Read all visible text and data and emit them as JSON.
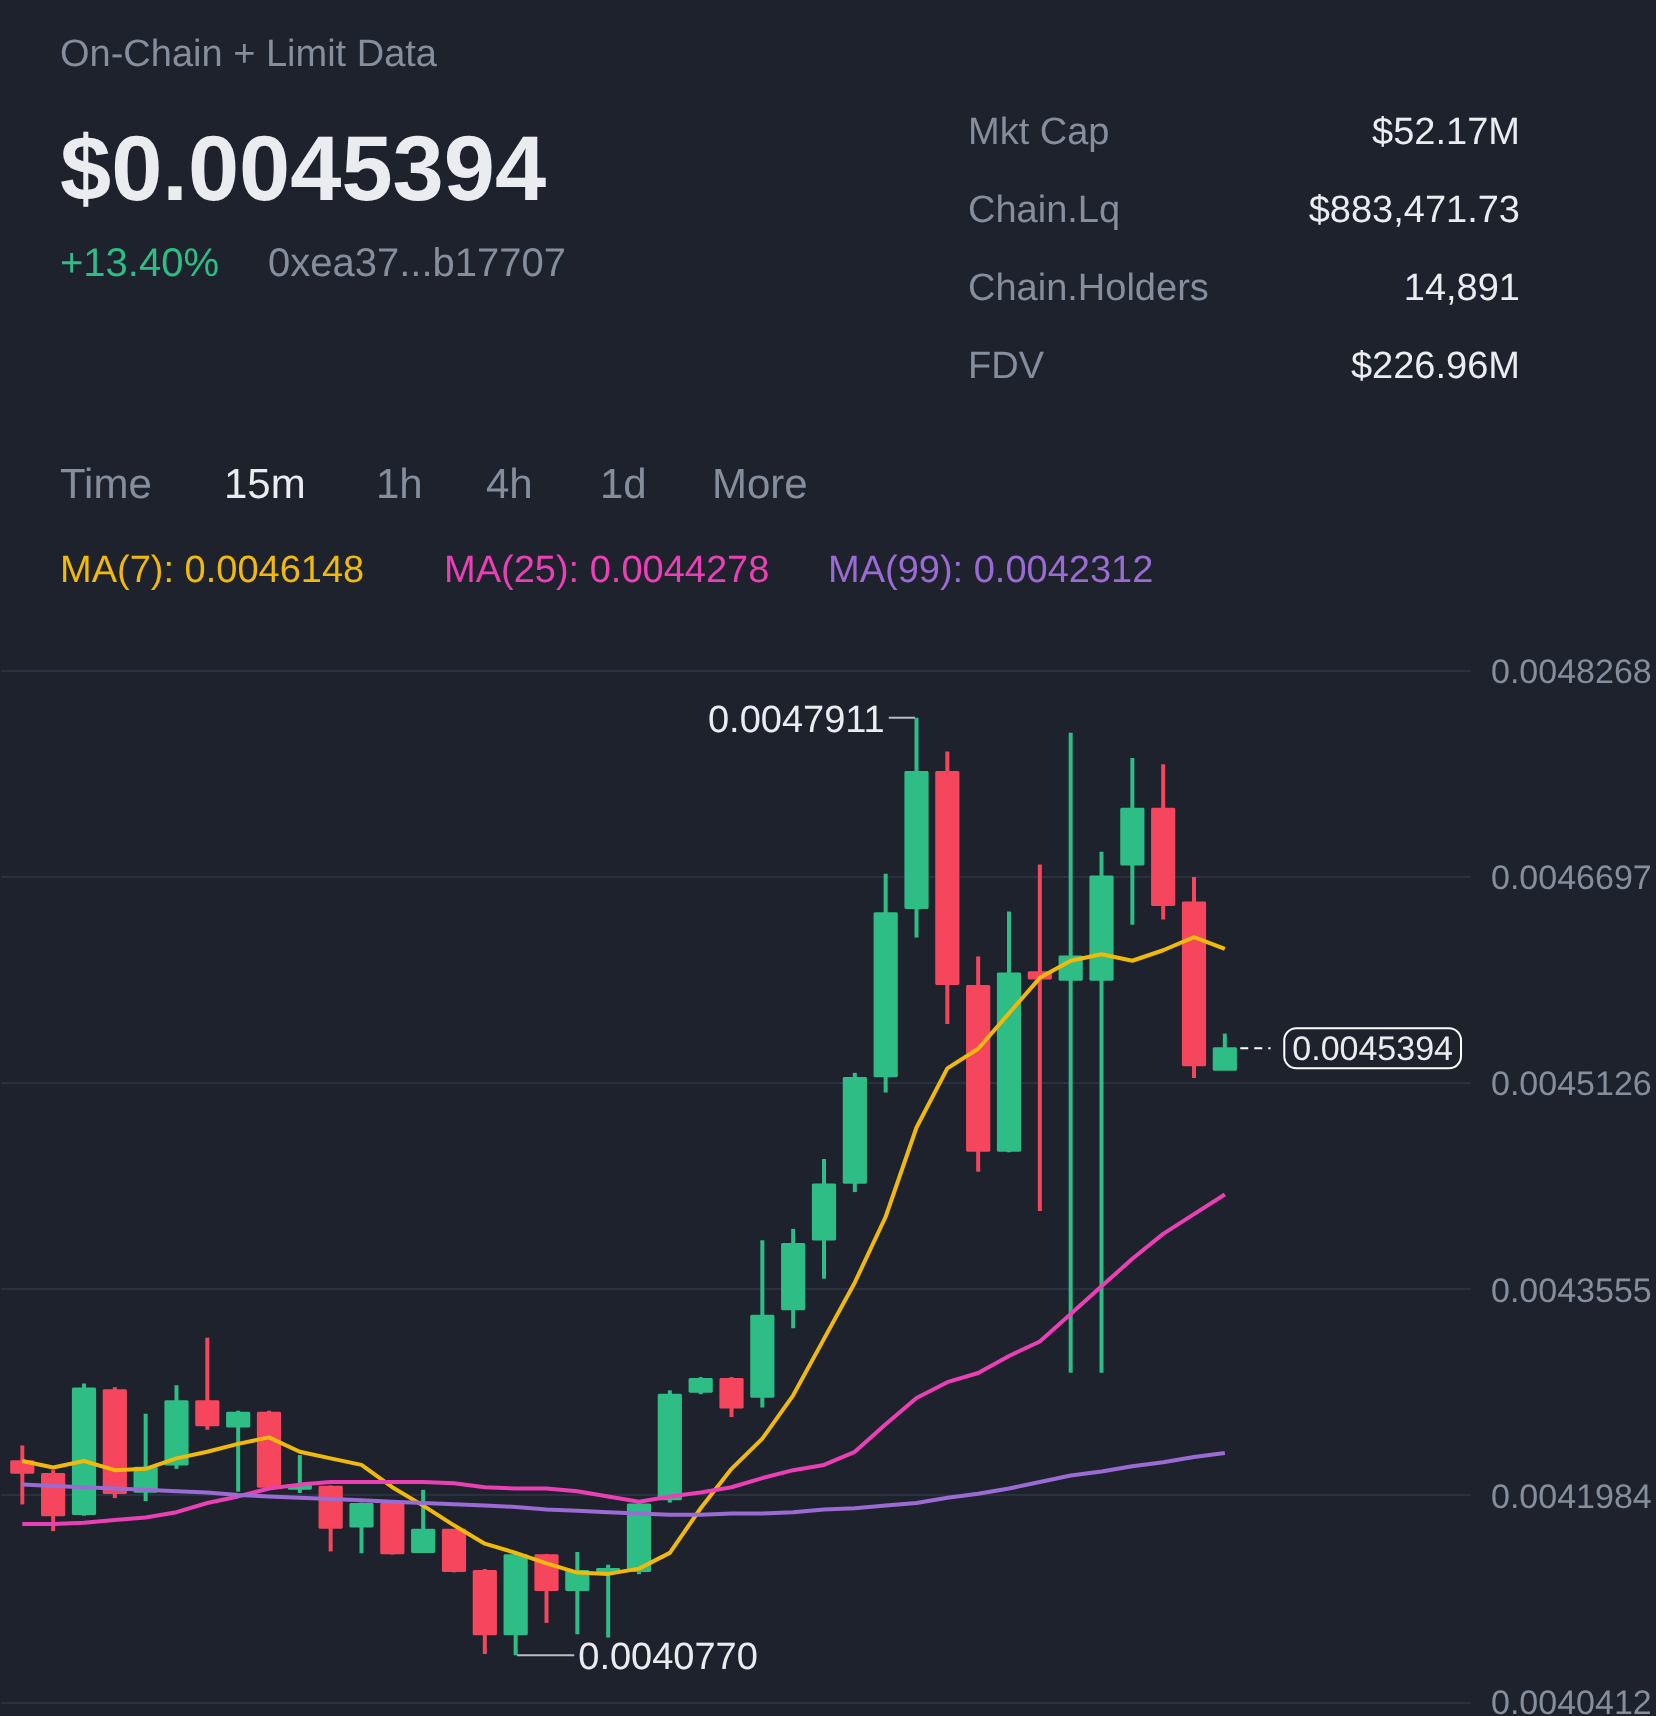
{
  "chart_data": {
    "type": "candlestick",
    "title": "On-Chain + Limit Data",
    "annotations": [
      "$0.0045394",
      "+13.40%",
      "0xea37...b17707",
      "Mkt Cap",
      "$52.17M",
      "Chain.Lq",
      "$883,471.73",
      "Chain.Holders",
      "14,891",
      "FDV",
      "$226.96M",
      "Time",
      "15m",
      "1h",
      "4h",
      "1d",
      "More",
      "0.0047911",
      "0.0040770"
    ],
    "categories": [
      null,
      null,
      null,
      null,
      null,
      null,
      null,
      null,
      null,
      null,
      null,
      null,
      null,
      null,
      null,
      null,
      null,
      null,
      null,
      null,
      null,
      null,
      null,
      null,
      null,
      null,
      null,
      null,
      null,
      null,
      null,
      null,
      null,
      null,
      null,
      null,
      null,
      null,
      null,
      null
    ],
    "colors": [
      "#f6465d",
      "#f6465d",
      "#2ebd85",
      "#f6465d",
      "#2ebd85",
      "#2ebd85",
      "#f6465d",
      "#2ebd85",
      "#f6465d",
      "#2ebd85",
      "#f6465d",
      "#2ebd85",
      "#f6465d",
      "#2ebd85",
      "#f6465d",
      "#f6465d",
      "#2ebd85",
      "#f6465d",
      "#2ebd85",
      "#2ebd85",
      "#2ebd85",
      "#2ebd85",
      "#2ebd85",
      "#f6465d",
      "#2ebd85",
      "#2ebd85",
      "#2ebd85",
      "#2ebd85",
      "#2ebd85",
      "#2ebd85",
      "#f6465d",
      "#f6465d",
      "#2ebd85",
      "#f6465d",
      "#2ebd85",
      "#2ebd85",
      "#2ebd85",
      "#f6465d",
      "#f6465d",
      "#2ebd85"
    ],
    "ohlc": [
      [
        0.0042248,
        0.0042368,
        0.0041919,
        0.0042161
      ],
      [
        0.0042151,
        0.004218,
        0.0041716,
        0.0041836
      ],
      [
        0.0041847,
        0.0042841,
        0.0041832,
        0.0042802
      ],
      [
        0.0042788,
        0.0042812,
        0.0041967,
        0.0042006
      ],
      [
        0.0042016,
        0.004261,
        0.0041944,
        0.0042198
      ],
      [
        0.0042223,
        0.0042827,
        0.004219,
        0.0042705
      ],
      [
        0.0042705,
        0.0043189,
        0.0042488,
        0.0042523
      ],
      [
        0.0042513,
        0.0042633,
        0.0042016,
        0.0042618
      ],
      [
        0.0042618,
        0.0042633,
        0.0042042,
        0.0042054
      ],
      [
        0.0042039,
        0.0042295,
        0.0042006,
        0.0042064
      ],
      [
        0.0042054,
        0.0042064,
        0.0041561,
        0.0041741
      ],
      [
        0.004175,
        0.0041933,
        0.0041547,
        0.0041923
      ],
      [
        0.0041923,
        0.0041948,
        0.0041538,
        0.0041547
      ],
      [
        0.0041557,
        0.004203,
        0.004155,
        0.0041726
      ],
      [
        0.0041726,
        0.004173,
        0.0041402,
        0.0041412
      ],
      [
        0.0041412,
        0.0041427,
        0.004078,
        0.004093
      ],
      [
        0.004093,
        0.0041542,
        0.004077,
        0.0041532
      ],
      [
        0.0041532,
        0.0041542,
        0.0041017,
        0.0041267
      ],
      [
        0.0041267,
        0.0041557,
        0.004093,
        0.0041412
      ],
      [
        0.0041412,
        0.004146,
        0.0040905,
        0.0041427
      ],
      [
        0.0041412,
        0.0041944,
        0.0041388,
        0.0041919
      ],
      [
        0.0041958,
        0.0042788,
        0.0041933,
        0.0042754
      ],
      [
        0.0042778,
        0.0042889,
        0.0042759,
        0.0042875
      ],
      [
        0.0042875,
        0.0042889,
        0.0042585,
        0.0042657
      ],
      [
        0.004274,
        0.0043932,
        0.0042657,
        0.0043357
      ],
      [
        0.0043406,
        0.0044018,
        0.0043261,
        0.0043903
      ],
      [
        0.0043936,
        0.004455,
        0.0043638,
        0.0044356
      ],
      [
        0.004437,
        0.0045206,
        0.0044298,
        0.0045167
      ],
      [
        0.0045181,
        0.0046722,
        0.0045057,
        0.0046422
      ],
      [
        0.0046461,
        0.0047911,
        0.0046238,
        0.0047498
      ],
      [
        0.0047498,
        0.0047653,
        0.0045578,
        0.0045882
      ],
      [
        0.0045867,
        0.0046093,
        0.0044453,
        0.0044612
      ],
      [
        0.0044612,
        0.0046436,
        0.0044602,
        0.0045963
      ],
      [
        0.0045973,
        0.0046794,
        0.0044153,
        0.0045925
      ],
      [
        0.0045915,
        0.0047797,
        0.0042922,
        0.0046093
      ],
      [
        0.0045915,
        0.004689,
        0.0042922,
        0.0046701
      ],
      [
        0.0046794,
        0.0047605,
        0.0046335,
        0.0047218
      ],
      [
        0.0047218,
        0.0047556,
        0.0046374,
        0.0046484
      ],
      [
        0.0046504,
        0.0046697,
        0.0045167,
        0.0045264
      ],
      [
        0.004523,
        0.0045505,
        0.004523,
        0.0045394
      ]
    ],
    "series": [
      {
        "type": "line",
        "name": "MA(7): 0.0046148",
        "color": "#f0b90b",
        "values": [
          0.004225,
          0.00422,
          0.004225,
          0.004218,
          0.004219,
          0.004227,
          0.004232,
          0.004238,
          0.004243,
          0.004232,
          0.004227,
          0.004222,
          0.004205,
          0.004191,
          0.004176,
          0.004162,
          0.004155,
          0.004147,
          0.00414,
          0.004139,
          0.004143,
          0.004155,
          0.004189,
          0.004219,
          0.004242,
          0.004275,
          0.004318,
          0.004361,
          0.004411,
          0.004479,
          0.004524,
          0.004539,
          0.004566,
          0.004593,
          0.004606,
          0.004611,
          0.004606,
          0.004614,
          0.004624,
          0.004615
        ]
      },
      {
        "type": "line",
        "name": "MA(25): 0.0044278",
        "color": "#eb40b5",
        "values": [
          0.004177,
          0.004177,
          0.004178,
          0.00418,
          0.004182,
          0.004186,
          0.004193,
          0.004198,
          0.004204,
          0.004207,
          0.004209,
          0.004209,
          0.004209,
          0.004209,
          0.004208,
          0.004205,
          0.004204,
          0.004204,
          0.004202,
          0.004198,
          0.004194,
          0.004198,
          0.004201,
          0.004205,
          0.004212,
          0.004218,
          0.004222,
          0.004232,
          0.004253,
          0.004273,
          0.004285,
          0.004292,
          0.004305,
          0.004316,
          0.004337,
          0.004358,
          0.004379,
          0.004398,
          0.004413,
          0.004428
        ]
      },
      {
        "type": "line",
        "name": "MA(99): 0.0042312",
        "color": "#9b6bd4",
        "values": [
          0.004207,
          0.004206,
          0.004205,
          0.004204,
          0.004203,
          0.004202,
          0.004201,
          0.004199,
          0.004198,
          0.004197,
          0.004196,
          0.004195,
          0.004194,
          0.004193,
          0.004192,
          0.004191,
          0.00419,
          0.004188,
          0.004187,
          0.004186,
          0.004185,
          0.004184,
          0.004184,
          0.004185,
          0.004185,
          0.004186,
          0.004188,
          0.004189,
          0.004191,
          0.004193,
          0.004197,
          0.0042,
          0.004204,
          0.004209,
          0.004214,
          0.004217,
          0.004221,
          0.004224,
          0.004228,
          0.004231
        ]
      }
    ],
    "ylim": [
      0.00403,
      0.00488
    ],
    "yticks": [
      0.0048268,
      0.0046697,
      0.0045126,
      0.0043555,
      0.0041984,
      0.0040412
    ],
    "grid": "y",
    "ref_lines": [
      {
        "axis": "y",
        "value": 0.0045394,
        "label": "0.0045394",
        "color": "#ffffff",
        "line_style": "dashed"
      }
    ]
  }
}
